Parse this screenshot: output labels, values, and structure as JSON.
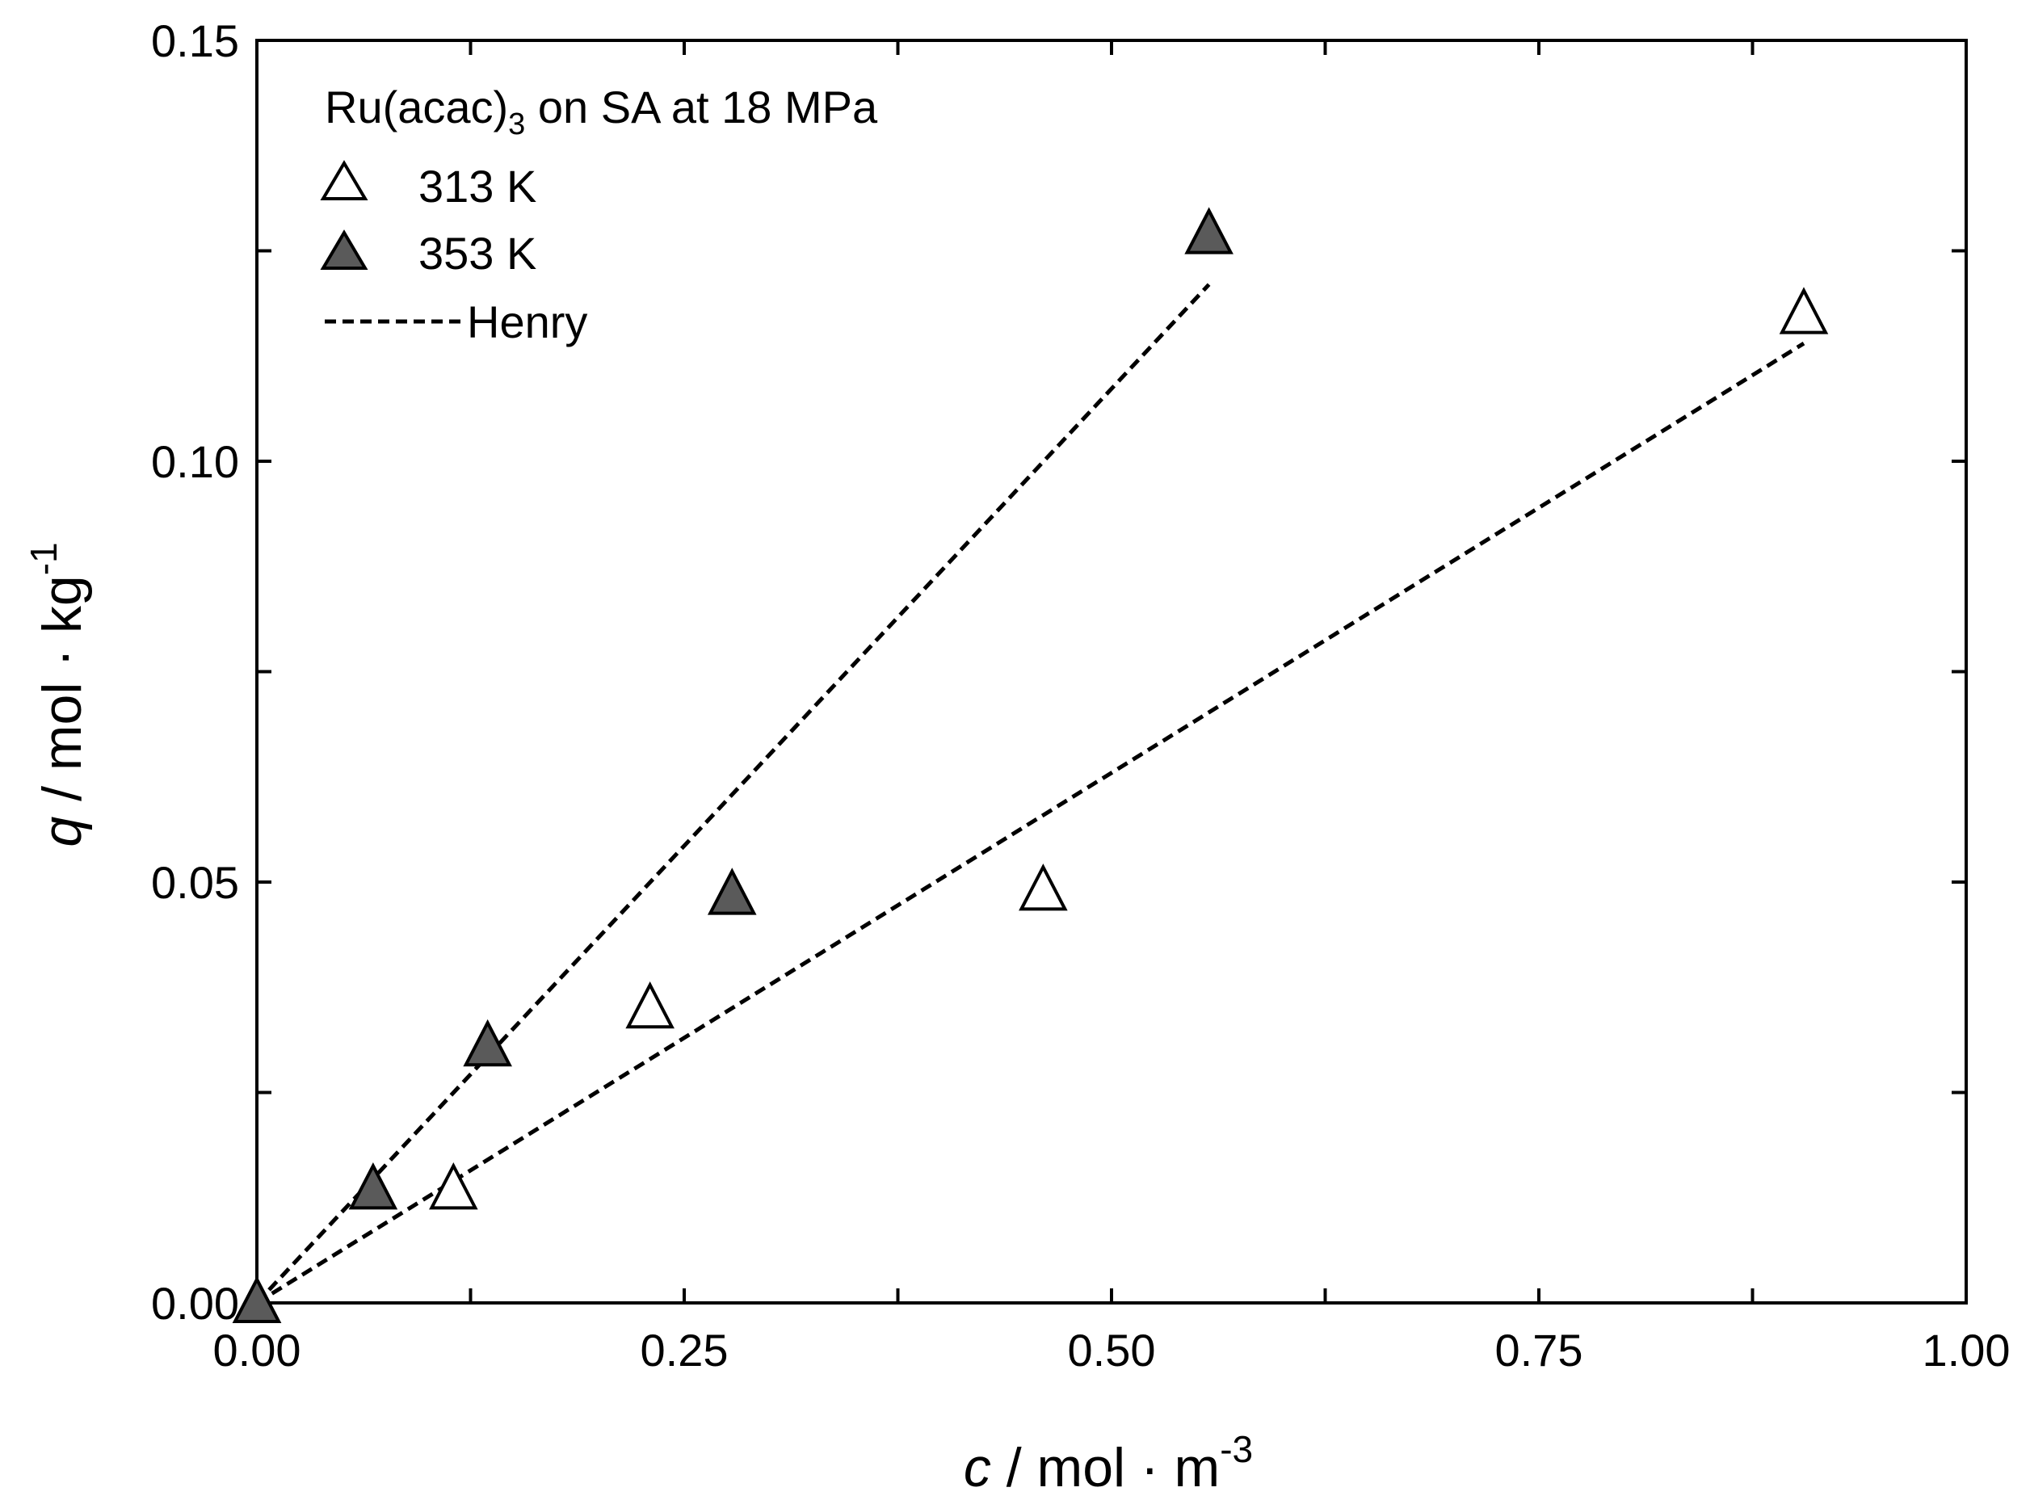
{
  "chart_data": {
    "type": "scatter",
    "title_parts": {
      "main": "Ru(acac)",
      "sub": "3",
      "tail": " on SA at 18 MPa"
    },
    "xlabel": {
      "var": "c",
      "unit": " / mol · m",
      "sup": "-3"
    },
    "ylabel": {
      "var": "q",
      "unit": " / mol · kg",
      "sup": "-1"
    },
    "xlim": [
      0,
      1.0
    ],
    "ylim": [
      0,
      0.15
    ],
    "xticks": [
      0,
      0.25,
      0.5,
      0.75,
      1.0
    ],
    "xtick_labels": [
      "0.00",
      "0.25",
      "0.50",
      "0.75",
      "1.00"
    ],
    "yticks": [
      0,
      0.05,
      0.1,
      0.15
    ],
    "ytick_labels": [
      "0.00",
      "0.05",
      "0.10",
      "0.15"
    ],
    "x_minor_ticks": [
      0.125,
      0.375,
      0.625,
      0.875
    ],
    "y_minor_ticks": [
      0.025,
      0.075,
      0.125
    ],
    "series": [
      {
        "name": "313 K",
        "marker": "open-triangle",
        "color": "#ffffff",
        "stroke": "#000000",
        "x": [
          0.0,
          0.115,
          0.23,
          0.46,
          0.905
        ],
        "y": [
          0.0,
          0.0135,
          0.035,
          0.049,
          0.1175
        ]
      },
      {
        "name": "353 K",
        "marker": "filled-triangle",
        "color": "#5a5a5a",
        "stroke": "#000000",
        "x": [
          0.0,
          0.068,
          0.135,
          0.278,
          0.557
        ],
        "y": [
          0.0,
          0.0135,
          0.0305,
          0.0485,
          0.127
        ]
      }
    ],
    "fits": [
      {
        "name": "Henry",
        "series": "313 K",
        "x": [
          0.0,
          0.905
        ],
        "y": [
          0.0,
          0.114
        ]
      },
      {
        "name": "Henry",
        "series": "353 K",
        "x": [
          0.0,
          0.557
        ],
        "y": [
          0.0,
          0.121
        ]
      }
    ],
    "legend": {
      "position": "top-left",
      "entries": [
        "313 K",
        "353 K",
        "Henry"
      ]
    }
  }
}
